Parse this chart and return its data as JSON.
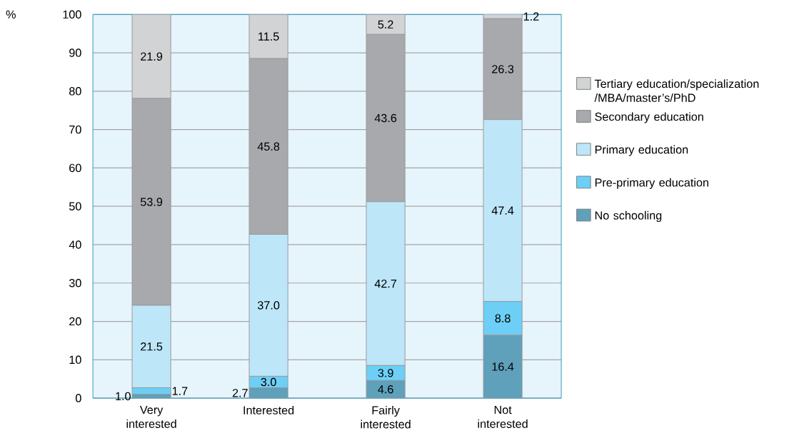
{
  "chart_data": {
    "type": "bar",
    "stacked": true,
    "ylabel": "%",
    "categories": [
      "Very interested",
      "Interested",
      "Fairly interested",
      "Not interested"
    ],
    "series": [
      {
        "name": "No schooling",
        "color": "#5fa0bb",
        "values": [
          1.0,
          2.7,
          4.6,
          16.4
        ],
        "value_labels": [
          "1.0",
          "2.7",
          "4.6",
          "16.4"
        ]
      },
      {
        "name": "Pre-primary education",
        "color": "#6dcff6",
        "values": [
          1.7,
          3.0,
          3.9,
          8.8
        ],
        "value_labels": [
          "1.7",
          "3.0",
          "3.9",
          "8.8"
        ]
      },
      {
        "name": "Primary education",
        "color": "#bde6f9",
        "values": [
          21.5,
          37.0,
          42.7,
          47.4
        ],
        "value_labels": [
          "21.5",
          "37.0",
          "42.7",
          "47.4"
        ]
      },
      {
        "name": "Secondary education",
        "color": "#a7a9ac",
        "values": [
          53.9,
          45.8,
          43.6,
          26.3
        ],
        "value_labels": [
          "53.9",
          "45.8",
          "43.6",
          "26.3"
        ]
      },
      {
        "name": "Tertiary education/specialization /MBA/master’s/PhD",
        "color": "#d1d3d4",
        "values": [
          21.9,
          11.5,
          5.2,
          1.2
        ],
        "value_labels": [
          "21.9",
          "11.5",
          "5.2",
          "1.2"
        ]
      }
    ],
    "ylim": [
      0,
      100
    ],
    "yticks": [
      0,
      10,
      20,
      30,
      40,
      50,
      60,
      70,
      80,
      90,
      100
    ],
    "grid": "y",
    "legend": "right"
  }
}
